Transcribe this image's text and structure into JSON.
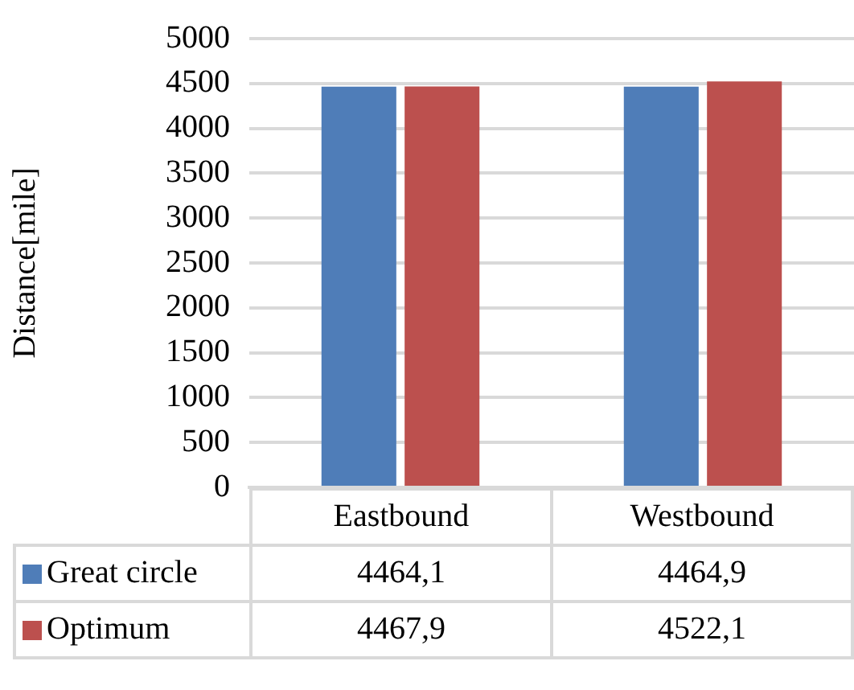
{
  "chart_data": {
    "type": "bar",
    "ylabel": "Distance[mile]",
    "categories": [
      "Eastbound",
      "Westbound"
    ],
    "series": [
      {
        "name": "Great circle",
        "color": "#4f7db8",
        "values": [
          4464.1,
          4464.9
        ],
        "value_labels": [
          "4464,1",
          "4464,9"
        ]
      },
      {
        "name": "Optimum",
        "color": "#bc504e",
        "values": [
          4467.9,
          4522.1
        ],
        "value_labels": [
          "4467,9",
          "4522,1"
        ]
      }
    ],
    "ylim": [
      0,
      5000
    ],
    "yticks": [
      0,
      500,
      1000,
      1500,
      2000,
      2500,
      3000,
      3500,
      4000,
      4500,
      5000
    ],
    "grid": "y",
    "legend": "bottom"
  }
}
